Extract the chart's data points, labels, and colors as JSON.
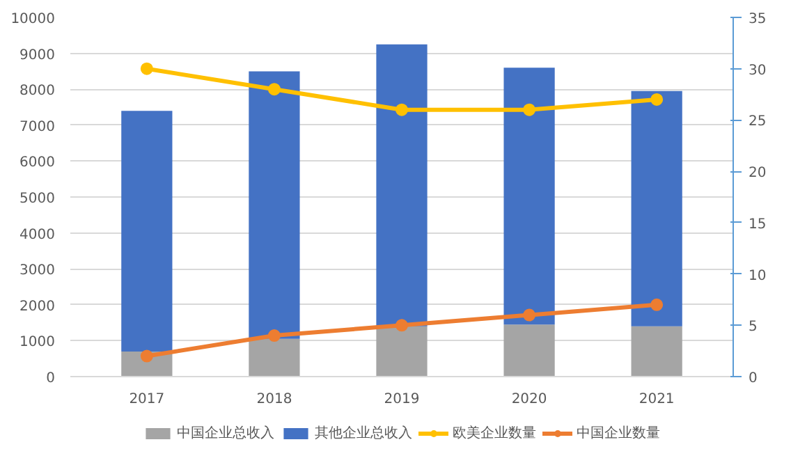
{
  "chart_data": {
    "type": "bar",
    "stacked": true,
    "categories": [
      "2017",
      "2018",
      "2019",
      "2020",
      "2021"
    ],
    "series": [
      {
        "name": "中国企业总收入",
        "color": "#a5a5a5",
        "values": [
          700,
          1050,
          1400,
          1450,
          1400
        ]
      },
      {
        "name": "其他企业总收入",
        "color": "#4472c4",
        "values": [
          6700,
          7450,
          7850,
          7150,
          6550
        ]
      },
      {
        "name": "欧美企业数量",
        "color": "#ffc000",
        "type": "line",
        "axis": "y2",
        "values": [
          30,
          28,
          26,
          26,
          27
        ]
      },
      {
        "name": "中国企业数量",
        "color": "#ed7d31",
        "type": "line",
        "axis": "y2",
        "values": [
          2,
          4,
          5,
          6,
          7
        ]
      }
    ],
    "ylim": [
      0,
      10000
    ],
    "yticks": [
      0,
      1000,
      2000,
      3000,
      4000,
      5000,
      6000,
      7000,
      8000,
      9000,
      10000
    ],
    "y2lim": [
      0,
      35
    ],
    "y2ticks": [
      0,
      5,
      10,
      15,
      20,
      25,
      30,
      35
    ],
    "grid": "y",
    "legend": "bottom",
    "marker": "circle",
    "line_style": "solid"
  }
}
